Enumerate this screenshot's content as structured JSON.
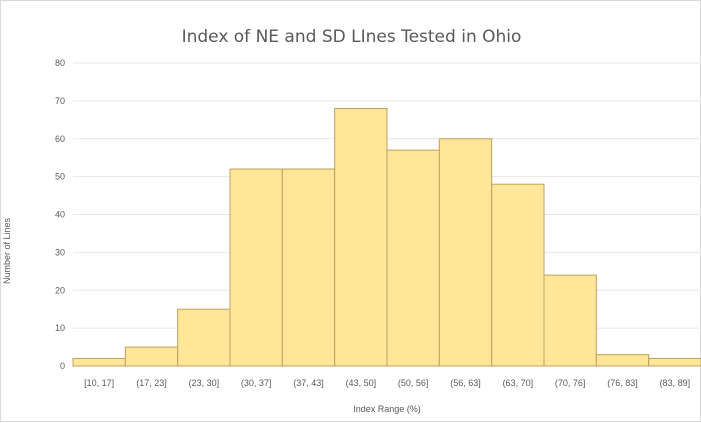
{
  "chart_data": {
    "type": "bar",
    "title": "Index of NE and SD LInes Tested in Ohio",
    "xlabel": "Index Range (%)",
    "ylabel": "Number of Lines",
    "categories": [
      "[10, 17]",
      "(17, 23]",
      "(23, 30]",
      "(30, 37]",
      "(37, 43]",
      "(43, 50]",
      "(50, 56]",
      "(56, 63]",
      "(63, 70]",
      "(70, 76]",
      "(76, 83]",
      "(83, 89]"
    ],
    "values": [
      2,
      5,
      15,
      52,
      52,
      68,
      57,
      60,
      48,
      24,
      3,
      2
    ],
    "ylim": [
      0,
      80
    ],
    "yticks": [
      0,
      10,
      20,
      30,
      40,
      50,
      60,
      70,
      80
    ],
    "grid": true,
    "bar_color": "#ffe699",
    "bar_edge_color": "#bfa15f",
    "gridline_color": "#e7e7e7"
  }
}
